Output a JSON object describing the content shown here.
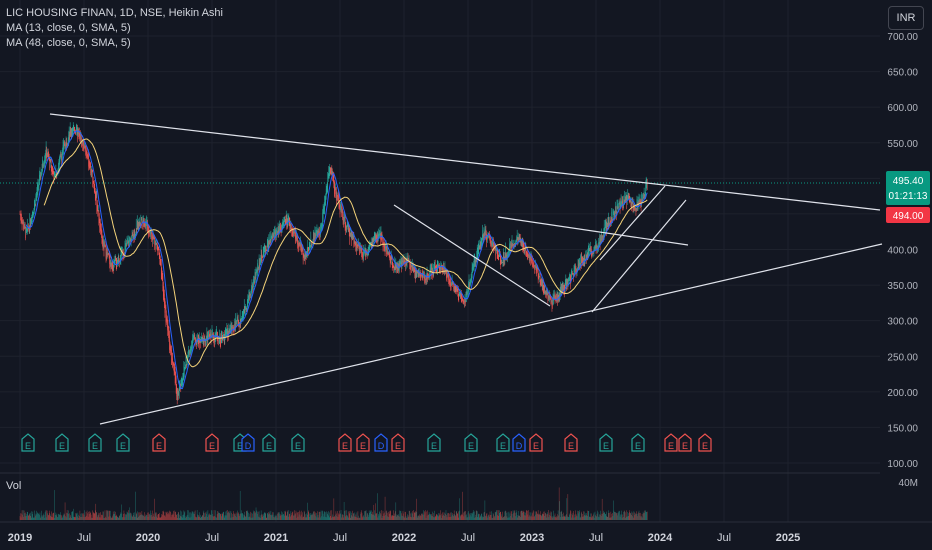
{
  "legend": {
    "symbol": "LIC HOUSING FINAN, 1D, NSE, Heikin Ashi",
    "ma1": "MA (13, close, 0, SMA, 5)",
    "ma2": "MA (48, close, 0, SMA, 5)"
  },
  "currency": "INR",
  "volume_label": "Vol",
  "colors": {
    "background": "#131722",
    "up": "#26a69a",
    "down": "#ef5350",
    "ma_short": "#2962ff",
    "ma_long": "#f5d47a",
    "trendline": "#e0e3eb",
    "grid": "#1e222d",
    "price_label": "#089981",
    "bid_label": "#f23645"
  },
  "chart_data": {
    "type": "candlestick",
    "title": "LIC HOUSING FINAN, 1D, NSE, Heikin Ashi",
    "y_ticks": [
      "700.00",
      "650.00",
      "600.00",
      "550.00",
      "500.00",
      "450.00",
      "400.00",
      "350.00",
      "300.00",
      "250.00",
      "200.00",
      "150.00",
      "100.00"
    ],
    "x_ticks": [
      "2019",
      "Jul",
      "2020",
      "Jul",
      "2021",
      "Jul",
      "2022",
      "Jul",
      "2023",
      "Jul",
      "2024",
      "Jul",
      "2025"
    ],
    "volume_max_label": "40M",
    "last_price": "495.40",
    "countdown": "01:21:13",
    "bid_price": "494.00",
    "ylim": [
      100,
      700
    ],
    "price_series": [
      {
        "t": 2019.0,
        "p": 450
      },
      {
        "t": 2019.05,
        "p": 420
      },
      {
        "t": 2019.12,
        "p": 470
      },
      {
        "t": 2019.2,
        "p": 540
      },
      {
        "t": 2019.27,
        "p": 500
      },
      {
        "t": 2019.35,
        "p": 550
      },
      {
        "t": 2019.42,
        "p": 572
      },
      {
        "t": 2019.5,
        "p": 545
      },
      {
        "t": 2019.58,
        "p": 490
      },
      {
        "t": 2019.64,
        "p": 410
      },
      {
        "t": 2019.72,
        "p": 375
      },
      {
        "t": 2019.8,
        "p": 395
      },
      {
        "t": 2019.88,
        "p": 420
      },
      {
        "t": 2019.95,
        "p": 445
      },
      {
        "t": 2020.02,
        "p": 425
      },
      {
        "t": 2020.08,
        "p": 400
      },
      {
        "t": 2020.13,
        "p": 320
      },
      {
        "t": 2020.18,
        "p": 250
      },
      {
        "t": 2020.23,
        "p": 195
      },
      {
        "t": 2020.28,
        "p": 230
      },
      {
        "t": 2020.35,
        "p": 275
      },
      {
        "t": 2020.42,
        "p": 270
      },
      {
        "t": 2020.5,
        "p": 280
      },
      {
        "t": 2020.58,
        "p": 275
      },
      {
        "t": 2020.65,
        "p": 290
      },
      {
        "t": 2020.72,
        "p": 300
      },
      {
        "t": 2020.8,
        "p": 340
      },
      {
        "t": 2020.88,
        "p": 390
      },
      {
        "t": 2020.95,
        "p": 410
      },
      {
        "t": 2021.02,
        "p": 430
      },
      {
        "t": 2021.08,
        "p": 440
      },
      {
        "t": 2021.15,
        "p": 420
      },
      {
        "t": 2021.22,
        "p": 390
      },
      {
        "t": 2021.28,
        "p": 415
      },
      {
        "t": 2021.35,
        "p": 430
      },
      {
        "t": 2021.42,
        "p": 520
      },
      {
        "t": 2021.48,
        "p": 470
      },
      {
        "t": 2021.55,
        "p": 430
      },
      {
        "t": 2021.62,
        "p": 410
      },
      {
        "t": 2021.68,
        "p": 390
      },
      {
        "t": 2021.75,
        "p": 410
      },
      {
        "t": 2021.82,
        "p": 420
      },
      {
        "t": 2021.88,
        "p": 390
      },
      {
        "t": 2021.95,
        "p": 375
      },
      {
        "t": 2022.02,
        "p": 385
      },
      {
        "t": 2022.08,
        "p": 370
      },
      {
        "t": 2022.15,
        "p": 360
      },
      {
        "t": 2022.22,
        "p": 370
      },
      {
        "t": 2022.28,
        "p": 380
      },
      {
        "t": 2022.35,
        "p": 360
      },
      {
        "t": 2022.42,
        "p": 340
      },
      {
        "t": 2022.48,
        "p": 330
      },
      {
        "t": 2022.55,
        "p": 385
      },
      {
        "t": 2022.62,
        "p": 425
      },
      {
        "t": 2022.68,
        "p": 410
      },
      {
        "t": 2022.75,
        "p": 385
      },
      {
        "t": 2022.82,
        "p": 400
      },
      {
        "t": 2022.88,
        "p": 415
      },
      {
        "t": 2022.95,
        "p": 400
      },
      {
        "t": 2023.02,
        "p": 380
      },
      {
        "t": 2023.08,
        "p": 350
      },
      {
        "t": 2023.15,
        "p": 325
      },
      {
        "t": 2023.22,
        "p": 340
      },
      {
        "t": 2023.3,
        "p": 360
      },
      {
        "t": 2023.38,
        "p": 385
      },
      {
        "t": 2023.45,
        "p": 395
      },
      {
        "t": 2023.52,
        "p": 410
      },
      {
        "t": 2023.6,
        "p": 440
      },
      {
        "t": 2023.68,
        "p": 460
      },
      {
        "t": 2023.75,
        "p": 475
      },
      {
        "t": 2023.8,
        "p": 460
      },
      {
        "t": 2023.86,
        "p": 470
      },
      {
        "t": 2023.9,
        "p": 495
      }
    ]
  }
}
